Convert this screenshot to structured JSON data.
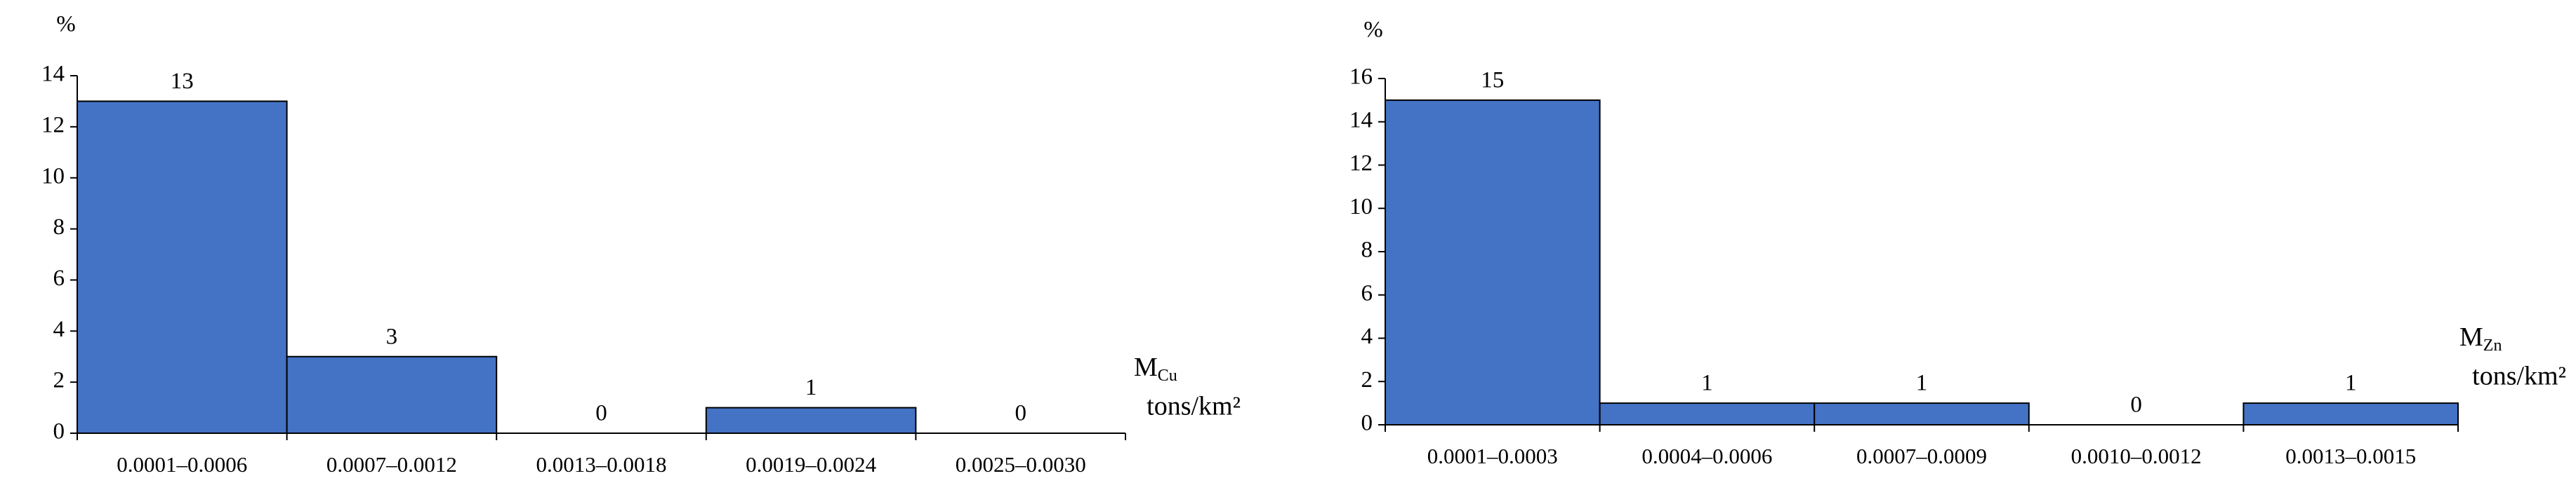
{
  "chart_data": [
    {
      "type": "bar",
      "y_label": "%",
      "x_label": {
        "symbol": "M",
        "subscript": "Cu",
        "unit": "tons/km²"
      },
      "categories": [
        "0.0001–0.0006",
        "0.0007–0.0012",
        "0.0013–0.0018",
        "0.0019–0.0024",
        "0.0025–0.0030"
      ],
      "values": [
        13,
        3,
        0,
        1,
        0
      ],
      "color": "#4472c4",
      "ylim": [
        0,
        14
      ],
      "yticks": [
        0,
        2,
        4,
        6,
        8,
        10,
        12,
        14
      ]
    },
    {
      "type": "bar",
      "y_label": "%",
      "x_label": {
        "symbol": "M",
        "subscript": "Zn",
        "unit": "tons/km²"
      },
      "categories": [
        "0.0001–0.0003",
        "0.0004–0.0006",
        "0.0007–0.0009",
        "0.0010–0.0012",
        "0.0013–0.0015"
      ],
      "values": [
        15,
        1,
        1,
        0,
        1
      ],
      "color": "#4472c4",
      "ylim": [
        0,
        16
      ],
      "yticks": [
        0,
        2,
        4,
        6,
        8,
        10,
        12,
        14,
        16
      ]
    }
  ]
}
